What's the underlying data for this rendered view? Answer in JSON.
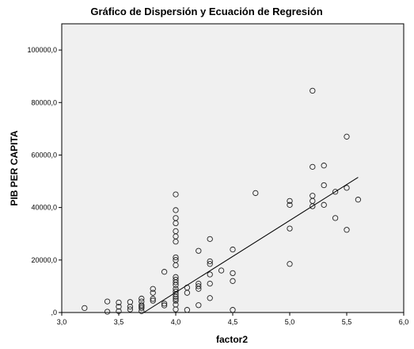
{
  "chart_data": {
    "type": "scatter",
    "title": "Gráfico de Dispersión y Ecuación de Regresión",
    "xlabel": "factor2",
    "ylabel": "PIB PER CAPITA",
    "xlim": [
      3.0,
      6.0
    ],
    "ylim": [
      0,
      110000
    ],
    "x_ticks": [
      3.0,
      3.5,
      4.0,
      4.5,
      5.0,
      5.5,
      6.0
    ],
    "x_tick_labels": [
      "3,0",
      "3,5",
      "4,0",
      "4,5",
      "5,0",
      "5,5",
      "6,0"
    ],
    "y_ticks": [
      0,
      20000,
      40000,
      60000,
      80000,
      100000
    ],
    "y_tick_labels": [
      ",0",
      "20000,0",
      "40000,0",
      "60000,0",
      "80000,0",
      "100000,0"
    ],
    "grid": false,
    "plot_background": "#f0f0f0",
    "marker": "open-circle",
    "regression_line": {
      "x": [
        3.72,
        5.6
      ],
      "y": [
        0,
        51500
      ]
    },
    "points": [
      [
        3.2,
        1700
      ],
      [
        3.4,
        4200
      ],
      [
        3.4,
        300
      ],
      [
        3.5,
        3800
      ],
      [
        3.5,
        2200
      ],
      [
        3.5,
        500
      ],
      [
        3.6,
        4000
      ],
      [
        3.6,
        2200
      ],
      [
        3.6,
        1200
      ],
      [
        3.7,
        5300
      ],
      [
        3.7,
        4200
      ],
      [
        3.7,
        2800
      ],
      [
        3.7,
        2300
      ],
      [
        3.7,
        1700
      ],
      [
        3.7,
        500
      ],
      [
        3.8,
        9000
      ],
      [
        3.8,
        7500
      ],
      [
        3.8,
        5200
      ],
      [
        3.8,
        4500
      ],
      [
        3.9,
        15500
      ],
      [
        3.9,
        3400
      ],
      [
        3.9,
        2700
      ],
      [
        4.0,
        45000
      ],
      [
        4.0,
        39000
      ],
      [
        4.0,
        36000
      ],
      [
        4.0,
        34000
      ],
      [
        4.0,
        31000
      ],
      [
        4.0,
        29000
      ],
      [
        4.0,
        27000
      ],
      [
        4.0,
        21000
      ],
      [
        4.0,
        20000
      ],
      [
        4.0,
        18000
      ],
      [
        4.0,
        13500
      ],
      [
        4.0,
        12500
      ],
      [
        4.0,
        11500
      ],
      [
        4.0,
        10500
      ],
      [
        4.0,
        9000
      ],
      [
        4.0,
        8000
      ],
      [
        4.0,
        7000
      ],
      [
        4.0,
        6000
      ],
      [
        4.0,
        5200
      ],
      [
        4.0,
        4500
      ],
      [
        4.0,
        3000
      ],
      [
        4.0,
        1200
      ],
      [
        4.1,
        9500
      ],
      [
        4.1,
        7500
      ],
      [
        4.1,
        1000
      ],
      [
        4.2,
        23500
      ],
      [
        4.2,
        11000
      ],
      [
        4.2,
        10000
      ],
      [
        4.2,
        9000
      ],
      [
        4.2,
        2800
      ],
      [
        4.3,
        28000
      ],
      [
        4.3,
        19500
      ],
      [
        4.3,
        18500
      ],
      [
        4.3,
        14500
      ],
      [
        4.3,
        11000
      ],
      [
        4.3,
        5500
      ],
      [
        4.4,
        16000
      ],
      [
        4.5,
        24000
      ],
      [
        4.5,
        15000
      ],
      [
        4.5,
        12000
      ],
      [
        4.5,
        1000
      ],
      [
        4.7,
        45500
      ],
      [
        5.0,
        42500
      ],
      [
        5.0,
        41000
      ],
      [
        5.0,
        32000
      ],
      [
        5.0,
        18500
      ],
      [
        5.2,
        84500
      ],
      [
        5.2,
        55500
      ],
      [
        5.2,
        44500
      ],
      [
        5.2,
        42500
      ],
      [
        5.2,
        40500
      ],
      [
        5.3,
        56000
      ],
      [
        5.3,
        48500
      ],
      [
        5.3,
        41000
      ],
      [
        5.4,
        46000
      ],
      [
        5.4,
        36000
      ],
      [
        5.5,
        67000
      ],
      [
        5.5,
        47500
      ],
      [
        5.5,
        31500
      ],
      [
        5.6,
        43000
      ]
    ]
  }
}
